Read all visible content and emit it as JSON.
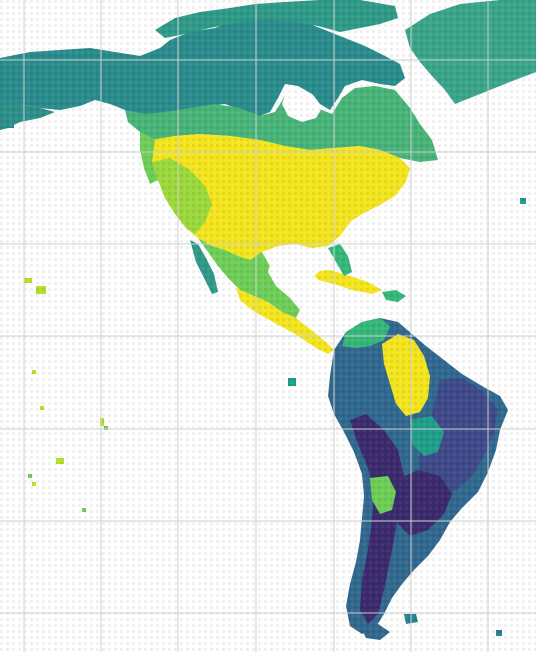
{
  "map": {
    "background": "#ffffff",
    "gridline_color": "#cfcfcf",
    "colormap": "viridis",
    "palette": {
      "dark_purple": "#3b2a6e",
      "indigo": "#3e4a89",
      "blue": "#31688e",
      "teal": "#26828e",
      "sea_green": "#1f9e89",
      "green": "#35b779",
      "light_green": "#6ece58",
      "lime": "#b5de2b",
      "yellow": "#f3e51e"
    }
  }
}
